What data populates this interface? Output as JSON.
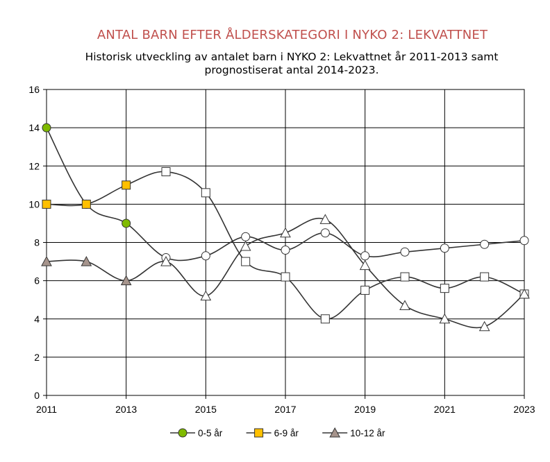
{
  "chart_data": {
    "type": "line",
    "title": "ANTAL BARN EFTER ÅLDERSKATEGORI I NYKO 2: LEKVATTNET",
    "subtitle": "Historisk utveckling av antalet barn i NYKO 2: Lekvattnet år 2011-2013 samt prognostiserat antal 2014-2023.",
    "x": [
      2011,
      2012,
      2013,
      2014,
      2015,
      2016,
      2017,
      2018,
      2019,
      2020,
      2021,
      2022,
      2023
    ],
    "x_tick_labels": [
      "2011",
      "2013",
      "2015",
      "2017",
      "2019",
      "2021",
      "2023"
    ],
    "xlim": [
      2011,
      2023
    ],
    "ylim": [
      0,
      16
    ],
    "y_ticks": [
      0,
      2,
      4,
      6,
      8,
      10,
      12,
      14,
      16
    ],
    "grid": true,
    "legend_position": "bottom",
    "historical_until": 2013,
    "series": [
      {
        "name": "0-5 år",
        "marker": "circle",
        "color": "#7fba00",
        "values": [
          14,
          10,
          9,
          7.2,
          7.3,
          8.3,
          7.6,
          8.5,
          7.3,
          7.5,
          7.7,
          7.9,
          8.1
        ]
      },
      {
        "name": "6-9 år",
        "marker": "square",
        "color": "#ffc000",
        "values": [
          10,
          10,
          11,
          11.7,
          10.6,
          7.0,
          6.2,
          4.0,
          5.5,
          6.2,
          5.6,
          6.2,
          5.3
        ]
      },
      {
        "name": "10-12 år",
        "marker": "triangle",
        "color": "#a6948c",
        "values": [
          7,
          7,
          6,
          7.0,
          5.2,
          7.8,
          8.5,
          9.2,
          6.8,
          4.7,
          4.0,
          3.6,
          5.3
        ]
      }
    ]
  },
  "colors": {
    "line": "#333333",
    "grid": "#000000",
    "forecast_marker_fill": "#ffffff"
  }
}
